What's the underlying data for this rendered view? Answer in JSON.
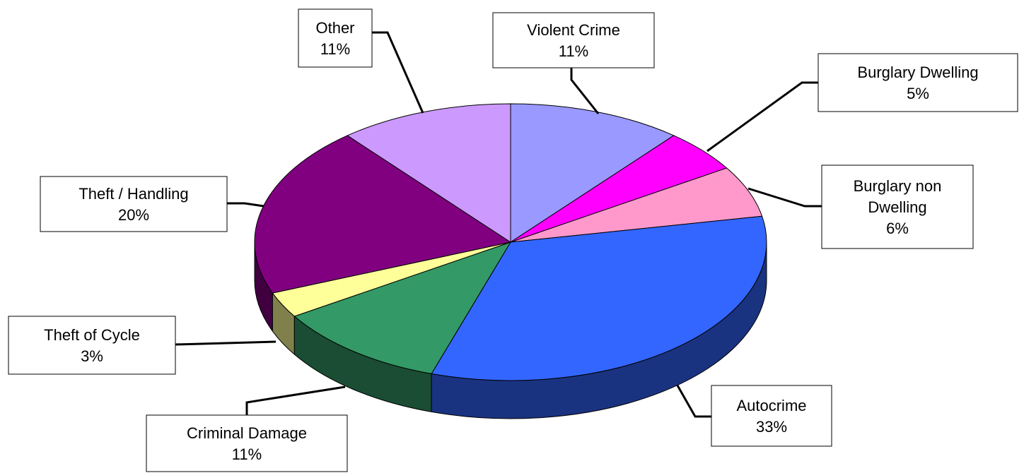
{
  "chart_data": {
    "type": "pie",
    "title": "",
    "three_d": true,
    "slices": [
      {
        "name": "Violent Crime",
        "value": 11,
        "label": [
          "Violent Crime",
          "11%"
        ],
        "color": "#9999FF"
      },
      {
        "name": "Burglary Dwelling",
        "value": 5,
        "label": [
          "Burglary Dwelling",
          "5%"
        ],
        "color": "#FF00FF"
      },
      {
        "name": "Burglary non Dwelling",
        "value": 6,
        "label": [
          "Burglary non",
          "Dwelling",
          "6%"
        ],
        "color": "#FF99CC"
      },
      {
        "name": "Autocrime",
        "value": 33,
        "label": [
          "Autocrime",
          "33%"
        ],
        "color": "#3366FF"
      },
      {
        "name": "Criminal Damage",
        "value": 11,
        "label": [
          "Criminal Damage",
          "11%"
        ],
        "color": "#339966"
      },
      {
        "name": "Theft of Cycle",
        "value": 3,
        "label": [
          "Theft of Cycle",
          "3%"
        ],
        "color": "#FFFF99"
      },
      {
        "name": "Theft / Handling",
        "value": 20,
        "label": [
          "Theft / Handling",
          "20%"
        ],
        "color": "#800080"
      },
      {
        "name": "Other",
        "value": 11,
        "label": [
          "Other",
          "11%"
        ],
        "color": "#CC99FF"
      }
    ]
  }
}
